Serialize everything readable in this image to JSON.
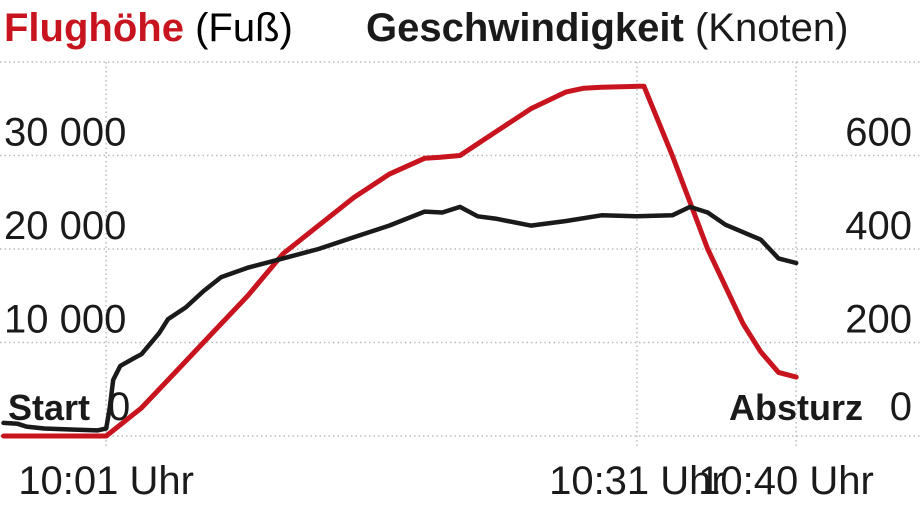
{
  "chart_data": {
    "type": "line",
    "title_left": {
      "lead": "Flughöhe",
      "unit": "(Fuß)"
    },
    "title_right": {
      "lead": "Geschwindigkeit",
      "unit": "(Knoten)"
    },
    "x_ticks": [
      {
        "label": "10:01 Uhr",
        "t": 0
      },
      {
        "label": "10:31 Uhr",
        "t": 30
      },
      {
        "label": "10:40 Uhr",
        "t": 39
      }
    ],
    "x_range": [
      -6,
      46
    ],
    "y_left": {
      "range": [
        0,
        40000
      ],
      "ticks": [
        0,
        10000,
        20000,
        30000
      ],
      "tick_labels": [
        "0",
        "10 000",
        "20 000",
        "30 000"
      ]
    },
    "y_right": {
      "range": [
        0,
        800
      ],
      "ticks": [
        0,
        200,
        400,
        600
      ],
      "tick_labels": [
        "0",
        "200",
        "400",
        "600"
      ]
    },
    "grid": true,
    "start_label": "Start",
    "end_label": "Absturz",
    "colors": {
      "altitude": "#c8141e",
      "speed": "#1a1a1a",
      "grid": "#bbbbbb"
    },
    "series": [
      {
        "axis": "left",
        "color": "#c8141e",
        "x": [
          -5.8,
          0,
          2,
          4,
          6,
          8,
          10,
          12,
          14,
          16,
          18,
          18.8,
          20,
          22,
          24,
          26,
          27,
          28,
          30,
          30.4,
          32,
          34,
          36,
          37,
          38,
          39
        ],
        "y": [
          0,
          0,
          3000,
          7000,
          11000,
          15000,
          19500,
          22500,
          25500,
          28000,
          29700,
          29800,
          30000,
          32500,
          35000,
          36800,
          37200,
          37300,
          37400,
          37400,
          30000,
          20000,
          12000,
          9000,
          6800,
          6300
        ]
      },
      {
        "axis": "right",
        "color": "#1a1a1a",
        "x": [
          -5.8,
          -5,
          -4.5,
          -3.5,
          -2,
          -0.5,
          0,
          0.2,
          0.4,
          0.8,
          1.5,
          2,
          3,
          3.5,
          4.5,
          5.5,
          6.5,
          8,
          10,
          12,
          14,
          16,
          18,
          19,
          20,
          21,
          22,
          24,
          26,
          28,
          30,
          32,
          33,
          34,
          35,
          37,
          38,
          39
        ],
        "y": [
          28,
          26,
          20,
          16,
          14,
          12,
          16,
          60,
          120,
          150,
          165,
          175,
          220,
          250,
          275,
          310,
          340,
          360,
          380,
          400,
          425,
          450,
          480,
          478,
          490,
          470,
          465,
          450,
          460,
          472,
          470,
          472,
          490,
          478,
          452,
          420,
          380,
          370
        ]
      }
    ]
  }
}
